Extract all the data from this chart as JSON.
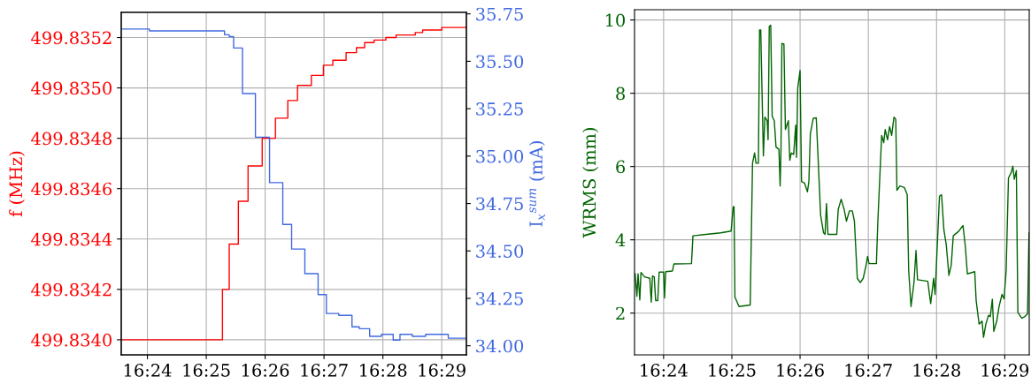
{
  "chart_data": [
    {
      "type": "step",
      "ylabel": "f (MHz)",
      "y2label": "I$_{x}$$^{sum}$ (mA)",
      "grid": true,
      "xlim": [
        16.3926,
        16.4903
      ],
      "ylim": [
        499.83394,
        499.8353
      ],
      "y2lim": [
        33.952,
        35.758
      ],
      "xticks": [
        {
          "value": 16.4,
          "label": "16:24"
        },
        {
          "value": 16.41667,
          "label": "16:25"
        },
        {
          "value": 16.43333,
          "label": "16:26"
        },
        {
          "value": 16.45,
          "label": "16:27"
        },
        {
          "value": 16.46667,
          "label": "16:28"
        },
        {
          "value": 16.48333,
          "label": "16:29"
        }
      ],
      "yticks": [
        {
          "value": 499.834,
          "label": "499.8340"
        },
        {
          "value": 499.8342,
          "label": "499.8342"
        },
        {
          "value": 499.8344,
          "label": "499.8344"
        },
        {
          "value": 499.8346,
          "label": "499.8346"
        },
        {
          "value": 499.8348,
          "label": "499.8348"
        },
        {
          "value": 499.835,
          "label": "499.8350"
        },
        {
          "value": 499.8352,
          "label": "499.8352"
        }
      ],
      "y2ticks": [
        {
          "value": 34,
          "label": "34.00"
        },
        {
          "value": 34.25,
          "label": "34.25"
        },
        {
          "value": 34.5,
          "label": "34.50"
        },
        {
          "value": 34.75,
          "label": "34.75"
        },
        {
          "value": 35,
          "label": "35.00"
        },
        {
          "value": 35.25,
          "label": "35.25"
        },
        {
          "value": 35.5,
          "label": "35.50"
        },
        {
          "value": 35.75,
          "label": "35.75"
        }
      ],
      "series": [
        {
          "color": "#ff0000",
          "axis": "y",
          "x": [
            16.3926,
            16.42125,
            16.42317,
            16.42575,
            16.4285,
            16.4325,
            16.43625,
            16.43975,
            16.4425,
            16.44642,
            16.44983,
            16.4525,
            16.45625,
            16.45917,
            16.4615,
            16.46417,
            16.4675,
            16.47042,
            16.47292,
            16.47583,
            16.47792,
            16.48333,
            16.48625,
            16.49025
          ],
          "values": [
            499.834,
            499.8342,
            499.83438,
            499.83455,
            499.83469,
            499.8348,
            499.83488,
            499.83495,
            499.83501,
            499.83505,
            499.83509,
            499.83511,
            499.83514,
            499.83516,
            499.83518,
            499.83519,
            499.8352,
            499.83521,
            499.83521,
            499.83522,
            499.83523,
            499.83524,
            499.83524,
            499.83524
          ]
        },
        {
          "color": "#4169e1",
          "axis": "y2",
          "x": [
            16.3926,
            16.40058,
            16.42183,
            16.42317,
            16.42442,
            16.42692,
            16.43058,
            16.43458,
            16.43833,
            16.44083,
            16.44458,
            16.44833,
            16.45067,
            16.45417,
            16.45792,
            16.46,
            16.46292,
            16.46625,
            16.46958,
            16.4715,
            16.475,
            16.47875,
            16.48517,
            16.49025
          ],
          "values": [
            35.67,
            35.66,
            35.64,
            35.63,
            35.57,
            35.33,
            35.1,
            34.86,
            34.64,
            34.51,
            34.38,
            34.27,
            34.17,
            34.16,
            34.1,
            34.09,
            34.05,
            34.06,
            34.03,
            34.06,
            34.05,
            34.06,
            34.04,
            34.04
          ]
        }
      ]
    },
    {
      "type": "line",
      "ylabel": "WRMS (mm)",
      "grid": true,
      "xlim": [
        16.3929,
        16.4893
      ],
      "ylim": [
        0.86,
        10.28
      ],
      "xticks": [
        {
          "value": 16.4,
          "label": "16:24"
        },
        {
          "value": 16.41667,
          "label": "16:25"
        },
        {
          "value": 16.43333,
          "label": "16:26"
        },
        {
          "value": 16.45,
          "label": "16:27"
        },
        {
          "value": 16.46667,
          "label": "16:28"
        },
        {
          "value": 16.48333,
          "label": "16:29"
        }
      ],
      "yticks": [
        2,
        4,
        6,
        8,
        10
      ],
      "series": [
        {
          "color": "#006400",
          "x": [
            16.39305,
            16.39348,
            16.39376,
            16.39419,
            16.39448,
            16.39534,
            16.39663,
            16.39699,
            16.39728,
            16.39771,
            16.39806,
            16.39857,
            16.39892,
            16.4,
            16.40022,
            16.4005,
            16.40215,
            16.40251,
            16.40681,
            16.40717,
            16.41039,
            16.41398,
            16.41649,
            16.41699,
            16.4172,
            16.41742,
            16.41842,
            16.42115,
            16.42172,
            16.42222,
            16.42258,
            16.42315,
            16.42344,
            16.42373,
            16.42437,
            16.42473,
            16.4253,
            16.42552,
            16.42581,
            16.42616,
            16.42652,
            16.42703,
            16.42746,
            16.42817,
            16.42846,
            16.42867,
            16.42889,
            16.42939,
            16.42975,
            16.43047,
            16.43082,
            16.43118,
            16.43176,
            16.43226,
            16.43247,
            16.43276,
            16.43333,
            16.43369,
            16.43441,
            16.43513,
            16.43548,
            16.43584,
            16.43656,
            16.43728,
            16.43763,
            16.43835,
            16.43907,
            16.43943,
            16.43978,
            16.44014,
            16.44229,
            16.44265,
            16.44337,
            16.44409,
            16.44466,
            16.44538,
            16.44609,
            16.4466,
            16.44731,
            16.44803,
            16.44875,
            16.44946,
            16.44982,
            16.45018,
            16.45197,
            16.45233,
            16.45326,
            16.45376,
            16.45412,
            16.4547,
            16.4552,
            16.4557,
            16.45627,
            16.4567,
            16.45699,
            16.45771,
            16.45878,
            16.4595,
            16.45986,
            16.46043,
            16.46115,
            16.46165,
            16.46201,
            16.46452,
            16.46523,
            16.46595,
            16.46631,
            16.46738,
            16.46789,
            16.46846,
            16.46903,
            16.46968,
            16.47025,
            16.47075,
            16.47204,
            16.47312,
            16.47369,
            16.47419,
            16.47599,
            16.47634,
            16.47706,
            16.47778,
            16.47814,
            16.47871,
            16.47935,
            16.47978,
            16.48029,
            16.48065,
            16.48136,
            16.48194,
            16.48265,
            16.48315,
            16.48366,
            16.48423,
            16.48495,
            16.4853,
            16.48566,
            16.48616,
            16.48652,
            16.48746,
            16.48817,
            16.48889,
            16.48925
          ],
          "values": [
            3.07,
            2.46,
            3.07,
            2.36,
            3.11,
            2.99,
            2.95,
            2.3,
            3.01,
            2.99,
            2.34,
            2.34,
            3.12,
            3.12,
            2.41,
            3.13,
            3.15,
            3.34,
            3.35,
            4.11,
            4.15,
            4.19,
            4.24,
            4.89,
            4.91,
            2.44,
            2.18,
            2.22,
            6.09,
            6.37,
            6.09,
            6.09,
            9.73,
            9.73,
            6.29,
            7.35,
            7.25,
            6.73,
            9.82,
            9.86,
            7.37,
            7.25,
            6.53,
            6.47,
            5.47,
            6.45,
            9.36,
            9.34,
            7.01,
            7.25,
            6.17,
            6.37,
            6.33,
            7.13,
            6.25,
            8.14,
            8.62,
            5.59,
            5.55,
            5.31,
            5.59,
            6.89,
            7.32,
            7.33,
            6.49,
            4.67,
            4.19,
            4.15,
            4.99,
            4.15,
            4.15,
            4.83,
            5.11,
            4.83,
            4.51,
            4.79,
            4.79,
            4.51,
            2.95,
            2.83,
            2.95,
            3.31,
            3.55,
            3.35,
            3.35,
            4.51,
            6.85,
            6.65,
            7.01,
            6.73,
            7.09,
            6.85,
            7.35,
            7.29,
            5.35,
            5.47,
            5.43,
            5.23,
            3.15,
            2.18,
            2.83,
            3.71,
            2.91,
            2.87,
            2.26,
            2.95,
            2.51,
            5.19,
            5.23,
            4.27,
            3.87,
            3.03,
            3.31,
            4.11,
            4.23,
            4.39,
            3.83,
            3.07,
            3.13,
            2.34,
            1.7,
            1.78,
            1.34,
            1.7,
            1.94,
            1.9,
            2.38,
            1.5,
            1.78,
            2.18,
            2.51,
            2.39,
            3.15,
            5.69,
            5.85,
            6.01,
            5.65,
            5.89,
            2.02,
            1.86,
            1.9,
            1.98,
            4.19
          ]
        }
      ]
    }
  ]
}
